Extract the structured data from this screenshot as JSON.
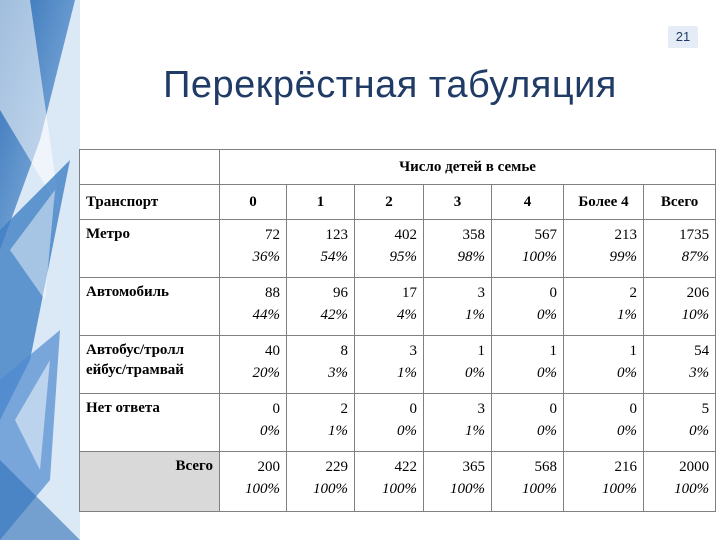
{
  "slide": {
    "number": "21",
    "title": "Перекрёстная табуляция"
  },
  "table": {
    "group_header": "Число детей в семье",
    "row_header": "Транспорт",
    "columns": [
      "0",
      "1",
      "2",
      "3",
      "4",
      "Более 4",
      "Всего"
    ],
    "rows": [
      {
        "label": "Метро",
        "cells": [
          {
            "n": "72",
            "p": "36%"
          },
          {
            "n": "123",
            "p": "54%"
          },
          {
            "n": "402",
            "p": "95%"
          },
          {
            "n": "358",
            "p": "98%"
          },
          {
            "n": "567",
            "p": "100%"
          },
          {
            "n": "213",
            "p": "99%"
          },
          {
            "n": "1735",
            "p": "87%"
          }
        ]
      },
      {
        "label": "Автомобиль",
        "cells": [
          {
            "n": "88",
            "p": "44%"
          },
          {
            "n": "96",
            "p": "42%"
          },
          {
            "n": "17",
            "p": "4%"
          },
          {
            "n": "3",
            "p": "1%"
          },
          {
            "n": "0",
            "p": "0%"
          },
          {
            "n": "2",
            "p": "1%"
          },
          {
            "n": "206",
            "p": "10%"
          }
        ]
      },
      {
        "label": "Автобус/тролл ейбус/трамвай",
        "cells": [
          {
            "n": "40",
            "p": "20%"
          },
          {
            "n": "8",
            "p": "3%"
          },
          {
            "n": "3",
            "p": "1%"
          },
          {
            "n": "1",
            "p": "0%"
          },
          {
            "n": "1",
            "p": "0%"
          },
          {
            "n": "1",
            "p": "0%"
          },
          {
            "n": "54",
            "p": "3%"
          }
        ]
      },
      {
        "label": "Нет ответа",
        "cells": [
          {
            "n": "0",
            "p": "0%"
          },
          {
            "n": "2",
            "p": "1%"
          },
          {
            "n": "0",
            "p": "0%"
          },
          {
            "n": "3",
            "p": "1%"
          },
          {
            "n": "0",
            "p": "0%"
          },
          {
            "n": "0",
            "p": "0%"
          },
          {
            "n": "5",
            "p": "0%"
          }
        ]
      }
    ],
    "total": {
      "label": "Всего",
      "cells": [
        {
          "n": "200",
          "p": "100%"
        },
        {
          "n": "229",
          "p": "100%"
        },
        {
          "n": "422",
          "p": "100%"
        },
        {
          "n": "365",
          "p": "100%"
        },
        {
          "n": "568",
          "p": "100%"
        },
        {
          "n": "216",
          "p": "100%"
        },
        {
          "n": "2000",
          "p": "100%"
        }
      ]
    }
  },
  "colors": {
    "title": "#1f3b66",
    "shade": "#d9d9d9",
    "deco_dark": "#2f6fb5",
    "deco_light": "#cfe0f3"
  }
}
